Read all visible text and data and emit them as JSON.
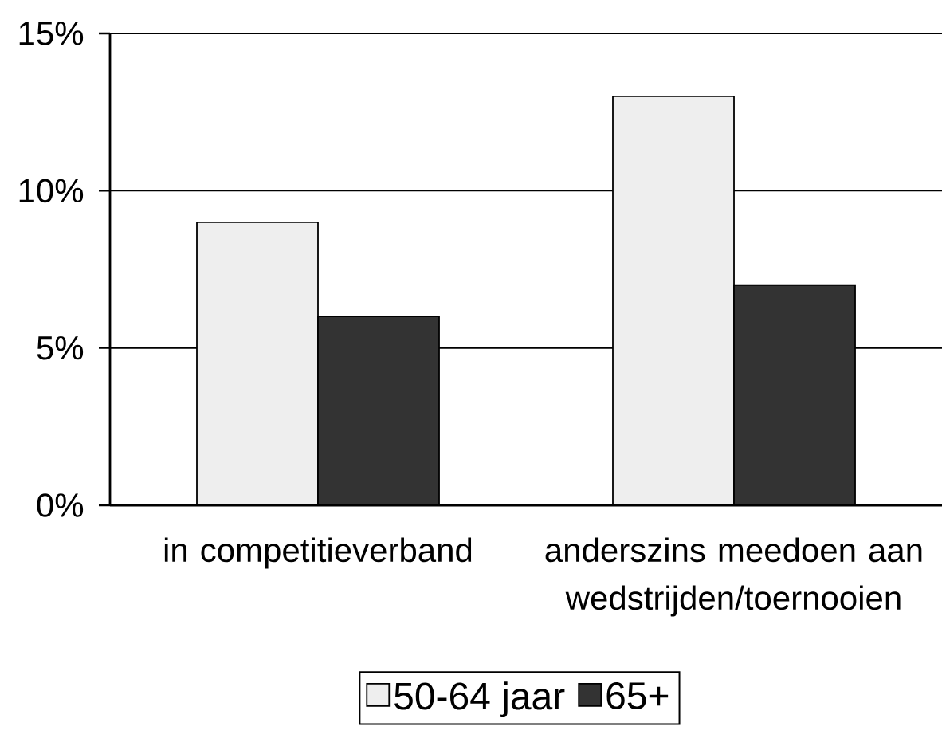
{
  "chart_data": {
    "type": "bar",
    "categories": [
      "in competitieverband",
      "anderszins meedoen aan wedstrijden/toernooien"
    ],
    "series": [
      {
        "name": "50-64 jaar",
        "color": "#eeeeee",
        "values": [
          9,
          13
        ]
      },
      {
        "name": "65+",
        "color": "#333333",
        "values": [
          6,
          7
        ]
      }
    ],
    "ylim": [
      0,
      15
    ],
    "yticks": [
      {
        "value": 0,
        "label": "0%"
      },
      {
        "value": 5,
        "label": "5%"
      },
      {
        "value": 10,
        "label": "10%"
      },
      {
        "value": 15,
        "label": "15%"
      }
    ],
    "grid": "y",
    "legend": "bottom"
  }
}
